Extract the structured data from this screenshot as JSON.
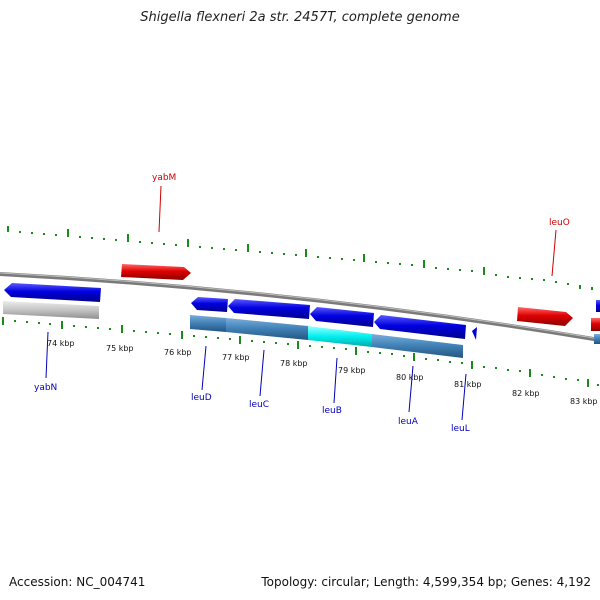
{
  "title": "Shigella flexneri 2a str. 2457T, complete genome",
  "footer": {
    "accession": "Accession: NC_004741",
    "summary": "Topology: circular; Length: 4,599,354 bp; Genes: 4,192"
  },
  "colors": {
    "forward_gene": "#e00000",
    "reverse_gene": "#0000e0",
    "tick": "#1a8a1a",
    "backbone": "#777777",
    "forward_label": "#cc0000",
    "reverse_label": "#0000bb"
  },
  "scale_ticks": [
    "74 kbp",
    "75 kbp",
    "76 kbp",
    "77 kbp",
    "78 kbp",
    "79 kbp",
    "80 kbp",
    "81 kbp",
    "82 kbp",
    "83 kbp"
  ],
  "gene_labels": {
    "yabM": "yabM",
    "leuO": "leuO",
    "yabN": "yabN",
    "leuD": "leuD",
    "leuC": "leuC",
    "leuB": "leuB",
    "leuA": "leuA",
    "leuL": "leuL"
  }
}
